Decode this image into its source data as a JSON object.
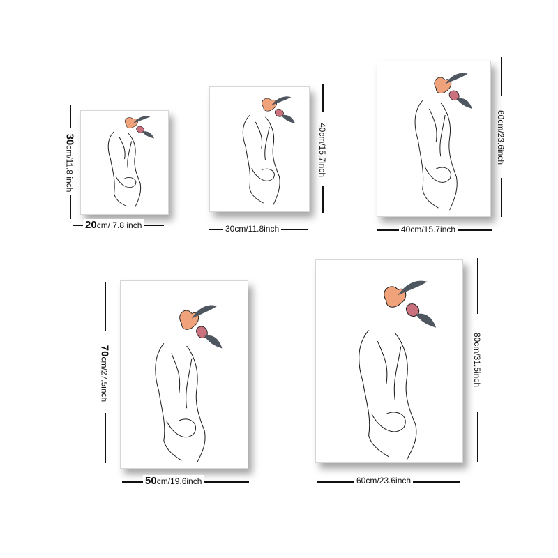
{
  "sizes": [
    {
      "width_main": "20",
      "width_rest": "cm/ 7.8 inch",
      "height_main": "30",
      "height_rest": "cm/11.8 inch"
    },
    {
      "width_main": "30cm/11.8inch",
      "width_rest": "",
      "height_main": "40cm/15.7inch",
      "height_rest": ""
    },
    {
      "width_main": "40cm/15.7inch",
      "width_rest": "",
      "height_main": "60cm/23.6inch",
      "height_rest": ""
    },
    {
      "width_main": "50",
      "width_rest": "cm/19.6inch",
      "height_main": "70",
      "height_rest": "cm/27.5inch"
    },
    {
      "width_main": "60cm/23.6inch",
      "width_rest": "",
      "height_main": "80cm/31.5inch",
      "height_rest": ""
    }
  ],
  "colors": {
    "flower_orange": "#f0a27a",
    "flower_rose": "#c9727d",
    "leaf": "#4e5660",
    "line": "#1a1a1a"
  }
}
